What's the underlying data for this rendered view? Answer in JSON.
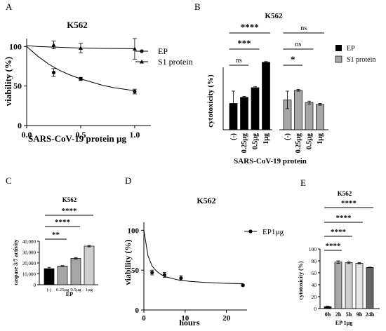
{
  "panel_letters": [
    "A",
    "B",
    "C",
    "D",
    "E"
  ],
  "colors": {
    "ink": "#000000",
    "ep_bar": "#000000",
    "s1_bar": "#a6a6a6",
    "bar_gray_1": "#a6a6a6",
    "bar_gray_2": "#cfcfcf",
    "bar_gray_3": "#e6e6e6",
    "bar_gray_4": "#666666"
  },
  "chart_data": [
    {
      "id": "A",
      "type": "line",
      "title": "K562",
      "xlabel": "SARS-CoV-19 protein µg",
      "ylabel": "viability (%)",
      "xlim": [
        0,
        1.15
      ],
      "ylim": [
        0,
        110
      ],
      "xticks": [
        "0.0",
        "0.5",
        "1.0"
      ],
      "xtick_values": [
        0,
        0.5,
        1.0
      ],
      "yticks": [
        "0",
        "50",
        "100"
      ],
      "ytick_values": [
        0,
        50,
        100
      ],
      "legend_position": "top-right",
      "series": [
        {
          "name": "EP",
          "marker": "circle",
          "x": [
            0.25,
            0.5,
            1.0
          ],
          "y": [
            67,
            59,
            43
          ],
          "err": [
            5,
            2,
            3
          ],
          "fit": [
            100,
            88,
            78,
            70,
            64,
            59,
            55,
            51,
            48,
            46,
            44
          ]
        },
        {
          "name": "S1 protein",
          "marker": "triangle",
          "x": [
            0.25,
            0.5,
            1.0
          ],
          "y": [
            102,
            98,
            97
          ],
          "err": [
            5,
            6,
            13
          ],
          "fit": [
            101,
            100,
            99.5,
            99,
            98.5,
            98,
            97.8,
            97.6,
            97.5,
            97.4,
            97.3
          ]
        }
      ],
      "fit_x": [
        0,
        0.1,
        0.2,
        0.3,
        0.4,
        0.5,
        0.6,
        0.7,
        0.8,
        0.9,
        1.0
      ]
    },
    {
      "id": "B",
      "type": "bar",
      "title": "K562",
      "xlabel": "SARS-CoV-19 protein",
      "ylabel": "cytotoxicity (%)",
      "ylim": [
        0,
        60
      ],
      "legend_position": "right",
      "categories": [
        "(-)",
        "0.25µg",
        "0.5µg",
        "1µg"
      ],
      "series": [
        {
          "name": "EP",
          "values": [
            15,
            18.5,
            24,
            38.5
          ],
          "err": [
            7,
            0.5,
            0.5,
            0.4
          ]
        },
        {
          "name": "S1 protein",
          "values": [
            17,
            22.5,
            15.5,
            14.5
          ],
          "err": [
            5,
            0.5,
            0.8,
            0.5
          ]
        }
      ],
      "significance": [
        {
          "series": 0,
          "from": 0,
          "to": 3,
          "label": "****"
        },
        {
          "series": 0,
          "from": 0,
          "to": 2,
          "label": "***"
        },
        {
          "series": 0,
          "from": 0,
          "to": 1,
          "label": "ns"
        },
        {
          "series": 1,
          "from": 0,
          "to": 3,
          "label": "ns"
        },
        {
          "series": 1,
          "from": 0,
          "to": 2,
          "label": "ns"
        },
        {
          "series": 1,
          "from": 0,
          "to": 1,
          "label": "*"
        }
      ]
    },
    {
      "id": "C",
      "type": "bar",
      "title": "K562",
      "xlabel": "EP",
      "ylabel": "caspase 3/7 activity",
      "ylim": [
        0,
        40000
      ],
      "yticks": [
        "0",
        "10,000",
        "20,000",
        "30,000",
        "40,000"
      ],
      "ytick_values": [
        0,
        10000,
        20000,
        30000,
        40000
      ],
      "categories": [
        "(-)",
        "0.25µg",
        "0.5µg",
        "1µg"
      ],
      "values": [
        14800,
        17200,
        24300,
        35500
      ],
      "err": [
        1200,
        400,
        700,
        700
      ],
      "significance": [
        {
          "from": 0,
          "to": 3,
          "label": "****"
        },
        {
          "from": 0,
          "to": 2,
          "label": "****"
        },
        {
          "from": 0,
          "to": 1,
          "label": "**"
        }
      ]
    },
    {
      "id": "D",
      "type": "line",
      "title": "K562",
      "xlabel": "hours",
      "ylabel": "viability (%)",
      "xlim": [
        0,
        25
      ],
      "ylim": [
        0,
        110
      ],
      "xticks": [
        "0",
        "10",
        "20"
      ],
      "xtick_values": [
        0,
        10,
        20
      ],
      "yticks": [
        "0",
        "50",
        "100"
      ],
      "ytick_values": [
        0,
        50,
        100
      ],
      "legend_position": "top-right",
      "series": [
        {
          "name": "EP1µg",
          "marker": "circle",
          "x": [
            2,
            5,
            9,
            24
          ],
          "y": [
            47,
            44,
            40,
            31
          ],
          "err": [
            3,
            3,
            3,
            1
          ],
          "fit": [
            100,
            68,
            55,
            49,
            45,
            42,
            38,
            36,
            34.5,
            33.5,
            33
          ]
        }
      ],
      "fit_x": [
        0,
        1,
        2,
        3,
        4,
        5,
        8,
        11,
        15,
        19,
        24
      ]
    },
    {
      "id": "E",
      "type": "bar",
      "title": "K562",
      "xlabel": "EP 1µg",
      "ylabel": "cytotoxicity (%)",
      "ylim": [
        0,
        100
      ],
      "yticks": [
        "0",
        "20",
        "40",
        "60",
        "80",
        "100"
      ],
      "ytick_values": [
        0,
        20,
        40,
        60,
        80,
        100
      ],
      "categories": [
        "0h",
        "2h",
        "5h",
        "9h",
        "24h"
      ],
      "values": [
        3,
        78,
        77,
        76,
        69
      ],
      "err": [
        1,
        2,
        1.5,
        1,
        0.5
      ],
      "significance": [
        {
          "from": 0,
          "to": 4,
          "label": "****"
        },
        {
          "from": 0,
          "to": 3,
          "label": "****"
        },
        {
          "from": 0,
          "to": 2,
          "label": "****"
        },
        {
          "from": 0,
          "to": 1,
          "label": "****"
        }
      ]
    }
  ]
}
